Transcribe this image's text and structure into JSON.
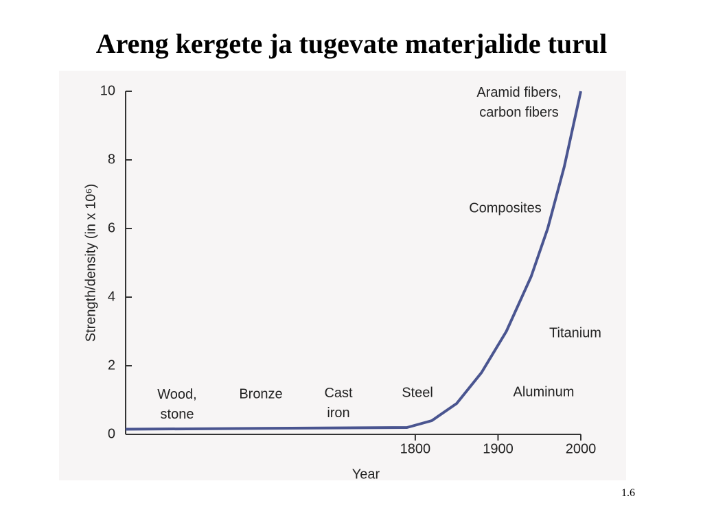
{
  "chart_data": {
    "type": "line",
    "title": "Areng kergete ja tugevate materjalide turul",
    "page_number": "1.6",
    "x_label": "Year",
    "y_label": "Strength/density (in x 10⁶)",
    "xlim": [
      1450,
      2000
    ],
    "xticks": [
      1800,
      1900,
      2000
    ],
    "ylim": [
      0,
      10
    ],
    "yticks": [
      0,
      2,
      4,
      6,
      8,
      10
    ],
    "series": [
      {
        "color": "#4a5590",
        "x": [
          1450,
          1790,
          1820,
          1850,
          1880,
          1910,
          1940,
          1960,
          1980,
          2000
        ],
        "values": [
          0.15,
          0.2,
          0.4,
          0.9,
          1.8,
          3.0,
          4.6,
          6.0,
          7.8,
          10
        ]
      }
    ],
    "annotations": [
      "Wood, stone",
      "Bronze",
      "Cast iron",
      "Steel",
      "Aluminum",
      "Titanium",
      "Composites",
      "Aramid fibers, carbon fibers"
    ]
  }
}
